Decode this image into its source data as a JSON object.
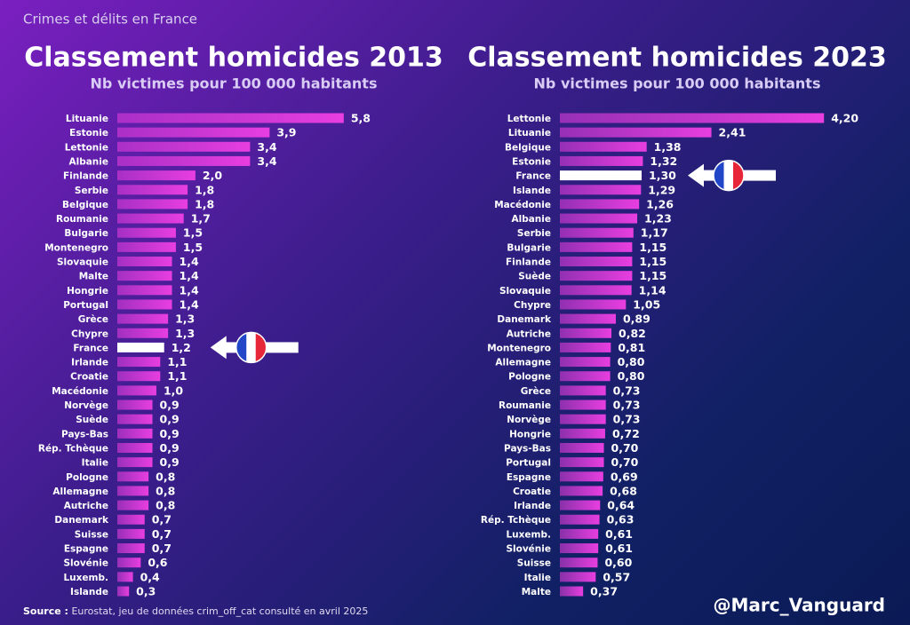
{
  "header": "Crimes et délits en France",
  "source": {
    "label": "Source :",
    "text": "Eurostat, jeu de données crim_off_cat consulté en avril 2025"
  },
  "credit": "@Marc_Vanguard",
  "chart_data": [
    {
      "type": "bar",
      "orientation": "horizontal",
      "title": "Classement homicides 2013",
      "subtitle": "Nb victimes pour 100 000 habitants",
      "categories": [
        "Lituanie",
        "Estonie",
        "Lettonie",
        "Albanie",
        "Finlande",
        "Serbie",
        "Belgique",
        "Roumanie",
        "Bulgarie",
        "Montenegro",
        "Slovaquie",
        "Malte",
        "Hongrie",
        "Portugal",
        "Grèce",
        "Chypre",
        "France",
        "Irlande",
        "Croatie",
        "Macédonie",
        "Norvège",
        "Suède",
        "Pays-Bas",
        "Rép. Tchèque",
        "Italie",
        "Pologne",
        "Allemagne",
        "Autriche",
        "Danemark",
        "Suisse",
        "Espagne",
        "Slovénie",
        "Luxemb.",
        "Islande"
      ],
      "values": [
        5.8,
        3.9,
        3.4,
        3.4,
        2.0,
        1.8,
        1.8,
        1.7,
        1.5,
        1.5,
        1.4,
        1.4,
        1.4,
        1.4,
        1.3,
        1.3,
        1.2,
        1.1,
        1.1,
        1.0,
        0.9,
        0.9,
        0.9,
        0.9,
        0.9,
        0.8,
        0.8,
        0.8,
        0.7,
        0.7,
        0.7,
        0.6,
        0.4,
        0.3
      ],
      "value_labels": [
        "5,8",
        "3,9",
        "3,4",
        "3,4",
        "2,0",
        "1,8",
        "1,8",
        "1,7",
        "1,5",
        "1,5",
        "1,4",
        "1,4",
        "1,4",
        "1,4",
        "1,3",
        "1,3",
        "1,2",
        "1,1",
        "1,1",
        "1,0",
        "0,9",
        "0,9",
        "0,9",
        "0,9",
        "0,9",
        "0,8",
        "0,8",
        "0,8",
        "0,7",
        "0,7",
        "0,7",
        "0,6",
        "0,4",
        "0,3"
      ],
      "colors": [
        "#e83ee0",
        "#e83ee0",
        "#e83ee0",
        "#e83ee0",
        "#e83ee0",
        "#e83ee0",
        "#e83ee0",
        "#e83ee0",
        "#e83ee0",
        "#e83ee0",
        "#e83ee0",
        "#e83ee0",
        "#e83ee0",
        "#e83ee0",
        "#e83ee0",
        "#e83ee0",
        "#ffffff",
        "#e83ee0",
        "#e83ee0",
        "#e83ee0",
        "#e83ee0",
        "#e83ee0",
        "#e83ee0",
        "#e83ee0",
        "#e83ee0",
        "#e83ee0",
        "#e83ee0",
        "#e83ee0",
        "#e83ee0",
        "#e83ee0",
        "#e83ee0",
        "#e83ee0",
        "#e83ee0",
        "#e83ee0"
      ],
      "xlim": [
        0,
        6.6
      ]
    },
    {
      "type": "bar",
      "orientation": "horizontal",
      "title": "Classement homicides 2023",
      "subtitle": "Nb victimes pour 100 000 habitants",
      "categories": [
        "Lettonie",
        "Lituanie",
        "Belgique",
        "Estonie",
        "France",
        "Islande",
        "Macédonie",
        "Albanie",
        "Serbie",
        "Bulgarie",
        "Finlande",
        "Suède",
        "Slovaquie",
        "Chypre",
        "Danemark",
        "Autriche",
        "Montenegro",
        "Allemagne",
        "Pologne",
        "Grèce",
        "Roumanie",
        "Norvège",
        "Hongrie",
        "Pays-Bas",
        "Portugal",
        "Espagne",
        "Croatie",
        "Irlande",
        "Rép. Tchèque",
        "Luxemb.",
        "Slovénie",
        "Suisse",
        "Italie",
        "Malte"
      ],
      "values": [
        4.2,
        2.41,
        1.38,
        1.32,
        1.3,
        1.29,
        1.26,
        1.23,
        1.17,
        1.15,
        1.15,
        1.15,
        1.14,
        1.05,
        0.89,
        0.82,
        0.81,
        0.8,
        0.8,
        0.73,
        0.73,
        0.73,
        0.72,
        0.7,
        0.7,
        0.69,
        0.68,
        0.64,
        0.63,
        0.61,
        0.61,
        0.6,
        0.57,
        0.37
      ],
      "value_labels": [
        "4,20",
        "2,41",
        "1,38",
        "1,32",
        "1,30",
        "1,29",
        "1,26",
        "1,23",
        "1,17",
        "1,15",
        "1,15",
        "1,15",
        "1,14",
        "1,05",
        "0,89",
        "0,82",
        "0,81",
        "0,80",
        "0,80",
        "0,73",
        "0,73",
        "0,73",
        "0,72",
        "0,70",
        "0,70",
        "0,69",
        "0,68",
        "0,64",
        "0,63",
        "0,61",
        "0,61",
        "0,60",
        "0,57",
        "0,37"
      ],
      "colors": [
        "#e83ee0",
        "#e83ee0",
        "#e83ee0",
        "#e83ee0",
        "#ffffff",
        "#e83ee0",
        "#e83ee0",
        "#e83ee0",
        "#e83ee0",
        "#e83ee0",
        "#e83ee0",
        "#e83ee0",
        "#e83ee0",
        "#e83ee0",
        "#e83ee0",
        "#e83ee0",
        "#e83ee0",
        "#e83ee0",
        "#e83ee0",
        "#e83ee0",
        "#e83ee0",
        "#e83ee0",
        "#e83ee0",
        "#e83ee0",
        "#e83ee0",
        "#e83ee0",
        "#e83ee0",
        "#e83ee0",
        "#e83ee0",
        "#e83ee0",
        "#e83ee0",
        "#e83ee0",
        "#e83ee0",
        "#e83ee0"
      ],
      "xlim": [
        0,
        5.2
      ]
    }
  ]
}
